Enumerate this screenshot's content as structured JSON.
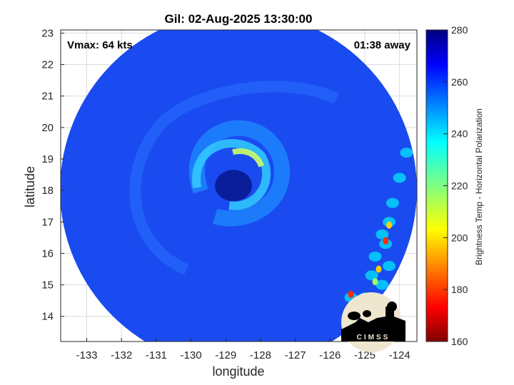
{
  "chart_data": {
    "type": "heatmap",
    "title": "Gil: 02-Aug-2025 13:30:00",
    "xlabel": "longitude",
    "ylabel": "latitude",
    "xlim": [
      -133.75,
      -123.5
    ],
    "ylim": [
      13.2,
      23.1
    ],
    "xticks": [
      -133,
      -132,
      -131,
      -130,
      -129,
      -128,
      -127,
      -126,
      -125,
      -124
    ],
    "yticks": [
      14,
      15,
      16,
      17,
      18,
      19,
      20,
      21,
      22,
      23
    ],
    "grid": true,
    "annotations": {
      "vmax": "Vmax: 64 kts",
      "away": "01:38 away"
    },
    "center": {
      "lon": -128.9,
      "lat": 18.2
    },
    "colorbar": {
      "label": "Brightness Temp - Horizontal Polarization",
      "range": [
        160,
        280
      ],
      "ticks": [
        160,
        180,
        200,
        220,
        240,
        260,
        280
      ],
      "colormap": "jet"
    },
    "logo_text": "CIMSS"
  }
}
